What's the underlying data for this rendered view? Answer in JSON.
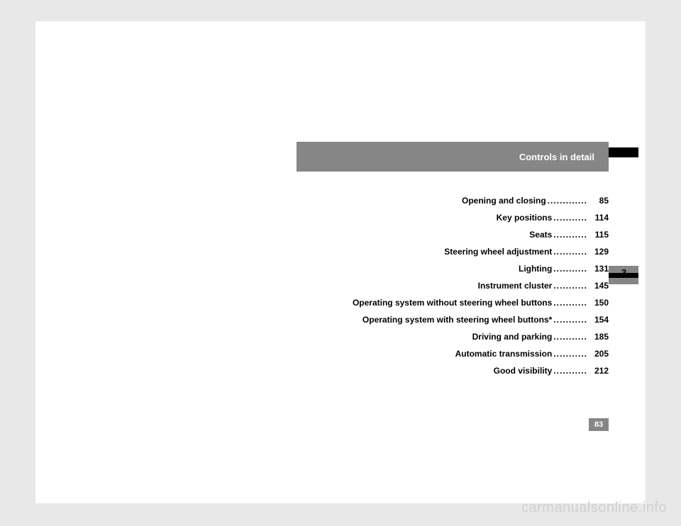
{
  "header": {
    "title": "Controls in detail"
  },
  "chapter": {
    "number": "3"
  },
  "toc": {
    "items": [
      {
        "title": "Opening and closing",
        "dots": ".............",
        "page": "85"
      },
      {
        "title": "Key positions",
        "dots": "...........",
        "page": "114"
      },
      {
        "title": "Seats",
        "dots": "...........",
        "page": "115"
      },
      {
        "title": "Steering wheel adjustment",
        "dots": "...........",
        "page": "129"
      },
      {
        "title": "Lighting",
        "dots": "...........",
        "page": "131"
      },
      {
        "title": "Instrument cluster",
        "dots": "...........",
        "page": "145"
      },
      {
        "title": "Operating system without steering wheel buttons",
        "dots": "...........",
        "page": "150"
      },
      {
        "title": "Operating system with steering wheel buttons*",
        "dots": "...........",
        "page": "154"
      },
      {
        "title": "Driving and parking",
        "dots": "...........",
        "page": "185"
      },
      {
        "title": "Automatic transmission",
        "dots": "...........",
        "page": "205"
      },
      {
        "title": "Good visibility",
        "dots": "...........",
        "page": "212"
      }
    ]
  },
  "pageNumber": "83",
  "watermark": "carmanualsonline.info"
}
